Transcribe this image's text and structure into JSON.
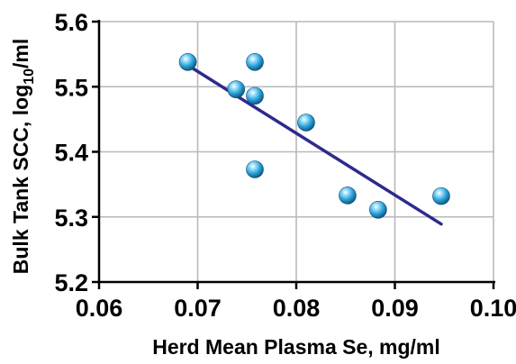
{
  "chart_data": {
    "type": "scatter",
    "title": "",
    "xlabel": "Herd Mean Plasma Se, mg/ml",
    "ylabel": "Bulk Tank SCC, log10/ml",
    "ylabel_parts": {
      "before": "Bulk Tank SCC, log",
      "sub": "10",
      "after": "/ml"
    },
    "xlim": [
      0.06,
      0.1
    ],
    "ylim": [
      5.2,
      5.6
    ],
    "x_ticks": [
      "0.06",
      "0.07",
      "0.08",
      "0.09",
      "0.10"
    ],
    "y_ticks": [
      "5.2",
      "5.3",
      "5.4",
      "5.5",
      "5.6"
    ],
    "grid": true,
    "legend": "none",
    "series": [
      {
        "points": [
          {
            "x": 0.069,
            "y": 5.538
          },
          {
            "x": 0.0739,
            "y": 5.496
          },
          {
            "x": 0.0758,
            "y": 5.538
          },
          {
            "x": 0.0758,
            "y": 5.486
          },
          {
            "x": 0.0758,
            "y": 5.373
          },
          {
            "x": 0.081,
            "y": 5.445
          },
          {
            "x": 0.0852,
            "y": 5.333
          },
          {
            "x": 0.0883,
            "y": 5.311
          },
          {
            "x": 0.0947,
            "y": 5.332
          }
        ]
      }
    ],
    "trendline": {
      "x": [
        0.069,
        0.0947
      ],
      "y": [
        5.533,
        5.289
      ]
    },
    "colors": {
      "marker": "#2a9fd4",
      "trendline": "#2e2a8c",
      "grid": "#b9b9b9",
      "axis": "#000000"
    }
  }
}
